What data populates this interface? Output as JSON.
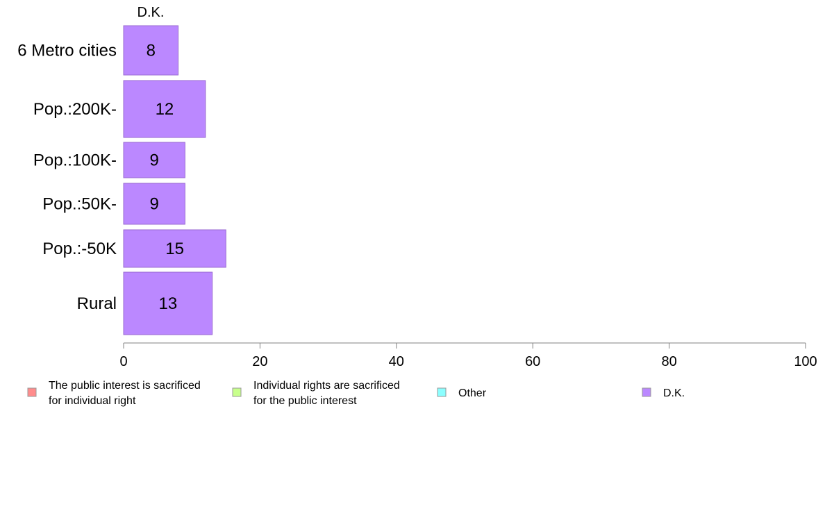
{
  "chart_data": {
    "type": "bar",
    "orientation": "horizontal",
    "stacked": true,
    "panel_title": "D.K.",
    "categories": [
      "6 Metro cities",
      "Pop.:200K-",
      "Pop.:100K-",
      "Pop.:50K-",
      "Pop.:-50K",
      "Rural"
    ],
    "series": [
      {
        "name": "The public interest is sacrificed\nfor individual right",
        "color": "#ff8c8c",
        "values": [
          null,
          null,
          null,
          null,
          null,
          null
        ]
      },
      {
        "name": "Individual rights are sacrificed\nfor the public interest",
        "color": "#c8ff8c",
        "values": [
          null,
          null,
          null,
          null,
          null,
          null
        ]
      },
      {
        "name": "Other",
        "color": "#8cffff",
        "values": [
          null,
          null,
          null,
          null,
          null,
          null
        ]
      },
      {
        "name": "D.K.",
        "color": "#bb88ff",
        "values": [
          8,
          12,
          9,
          9,
          15,
          13
        ]
      }
    ],
    "data_labels": [
      "8",
      "12",
      "9",
      "9",
      "15",
      "13"
    ],
    "xlim": [
      0,
      100
    ],
    "x_ticks": [
      0,
      20,
      40,
      60,
      80,
      100
    ],
    "x_tick_labels": [
      "0",
      "20",
      "40",
      "60",
      "80",
      "100"
    ],
    "grid": false,
    "legend_position": "bottom"
  }
}
